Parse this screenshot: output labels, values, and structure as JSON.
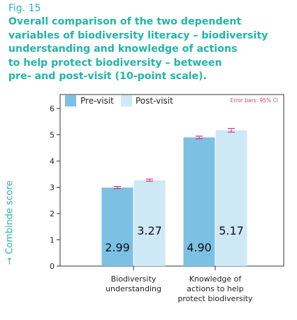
{
  "figure": {
    "label": "Fig. 15",
    "title_lines": [
      "Overall comparison of the two dependent",
      "variables of biodiversity literacy – biodiversity",
      "understanding and knowledge of actions",
      "to help protect biodiversity – between",
      "pre- and post-visit (10-point scale)."
    ]
  },
  "chart_data": {
    "type": "bar",
    "ylabel": "→ Combinde score",
    "ylim": [
      0,
      6
    ],
    "yticks": [
      0,
      1,
      2,
      3,
      4,
      5,
      6
    ],
    "categories": [
      [
        "Biodiversity",
        "understanding"
      ],
      [
        "Knowledge of",
        "actions to help",
        "protect biodiversity"
      ]
    ],
    "series": [
      {
        "name": "Pre-visit",
        "values": [
          2.99,
          4.9
        ],
        "labels": [
          "2.99",
          "4.90"
        ],
        "error": [
          0.04,
          0.05
        ],
        "color": "#7cc1e4"
      },
      {
        "name": "Post-visit",
        "values": [
          3.27,
          5.17
        ],
        "labels": [
          "3.27",
          "5.17"
        ],
        "error": [
          0.04,
          0.07
        ],
        "color": "#cfe8f6"
      }
    ],
    "error_color": "#e0307a",
    "note": "Error bars: 95% CI",
    "legend_position": "top-left",
    "grid": false
  }
}
